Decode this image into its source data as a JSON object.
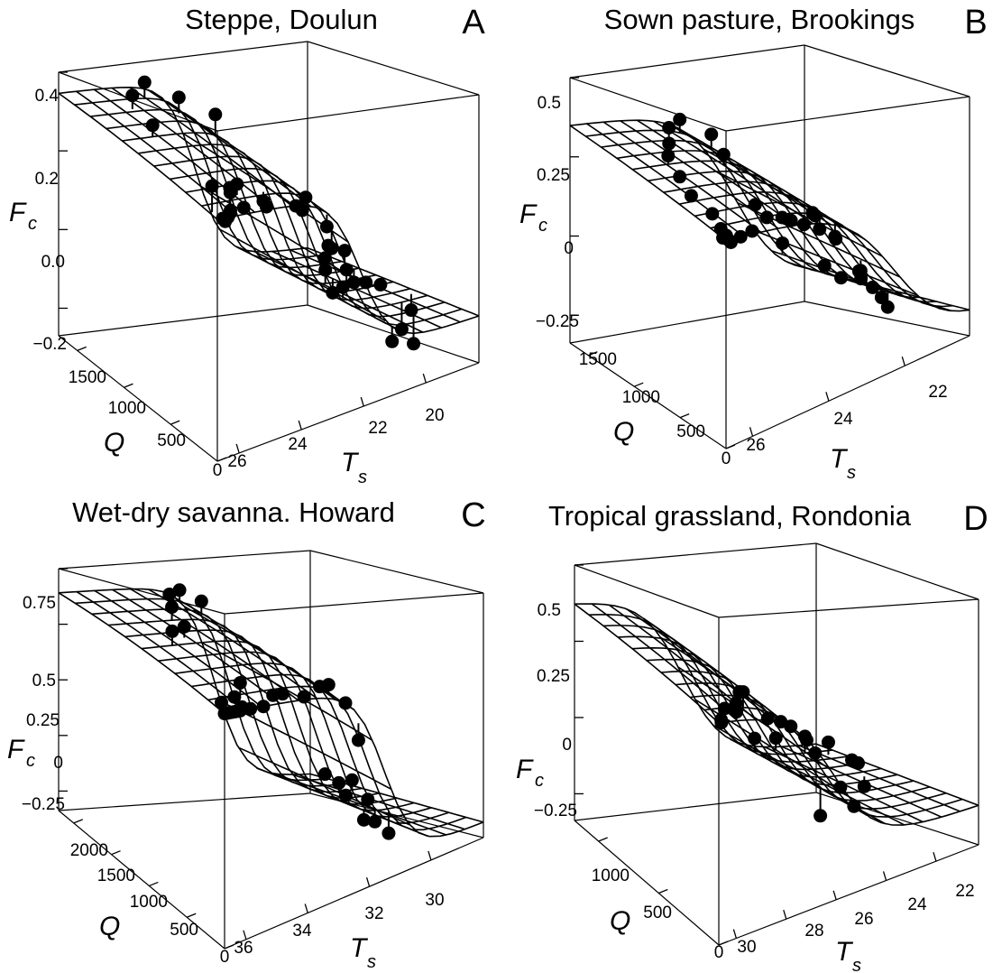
{
  "chart_data": [
    {
      "type": "scatter",
      "panel": "A",
      "title": "Steppe, Doulun",
      "xlabel": "Q",
      "ylabel": "T",
      "ylabel_sub": "s",
      "zlabel": "F",
      "zlabel_sub": "c",
      "q_ticks": [
        "0",
        "500",
        "1000",
        "1500"
      ],
      "t_ticks": [
        "26",
        "24",
        "22",
        "20"
      ],
      "f_ticks": [
        "0.4",
        "0.2",
        "0.0",
        "−0.2"
      ],
      "q_range": [
        0,
        1800
      ],
      "t_range": [
        27.5,
        18.5
      ],
      "f_range": [
        -0.3,
        0.45
      ]
    },
    {
      "type": "scatter",
      "panel": "B",
      "title": "Sown pasture, Brookings",
      "xlabel": "Q",
      "ylabel": "T",
      "ylabel_sub": "s",
      "zlabel": "F",
      "zlabel_sub": "c",
      "q_ticks": [
        "0",
        "500",
        "1000",
        "1500"
      ],
      "t_ticks": [
        "26",
        "24",
        "22"
      ],
      "f_ticks": [
        "0.5",
        "0.25",
        "0",
        "−0.25"
      ],
      "q_range": [
        0,
        1800
      ],
      "t_range": [
        27.5,
        20.5
      ],
      "f_range": [
        -0.4,
        0.6
      ]
    },
    {
      "type": "scatter",
      "panel": "C",
      "title": "Wet-dry savanna. Howard",
      "xlabel": "Q",
      "ylabel": "T",
      "ylabel_sub": "s",
      "zlabel": "F",
      "zlabel_sub": "c",
      "q_ticks": [
        "0",
        "500",
        "1000",
        "1500",
        "2000"
      ],
      "t_ticks": [
        "36",
        "34",
        "32",
        "30"
      ],
      "f_ticks": [
        "0.75",
        "0.5",
        "0.25",
        "0",
        "−0.25"
      ],
      "q_range": [
        0,
        2200
      ],
      "t_range": [
        37,
        29
      ],
      "f_range": [
        -0.4,
        0.85
      ]
    },
    {
      "type": "scatter",
      "panel": "D",
      "title": "Tropical grassland, Rondonia",
      "xlabel": "Q",
      "ylabel": "T",
      "ylabel_sub": "s",
      "zlabel": "F",
      "zlabel_sub": "c",
      "q_ticks": [
        "0",
        "500",
        "1000"
      ],
      "t_ticks": [
        "30",
        "28",
        "26",
        "24",
        "22"
      ],
      "f_ticks": [
        "0.5",
        "0.25",
        "0",
        "−0.25"
      ],
      "q_range": [
        0,
        1300
      ],
      "t_range": [
        31,
        21.5
      ],
      "f_range": [
        -0.4,
        0.65
      ]
    }
  ]
}
